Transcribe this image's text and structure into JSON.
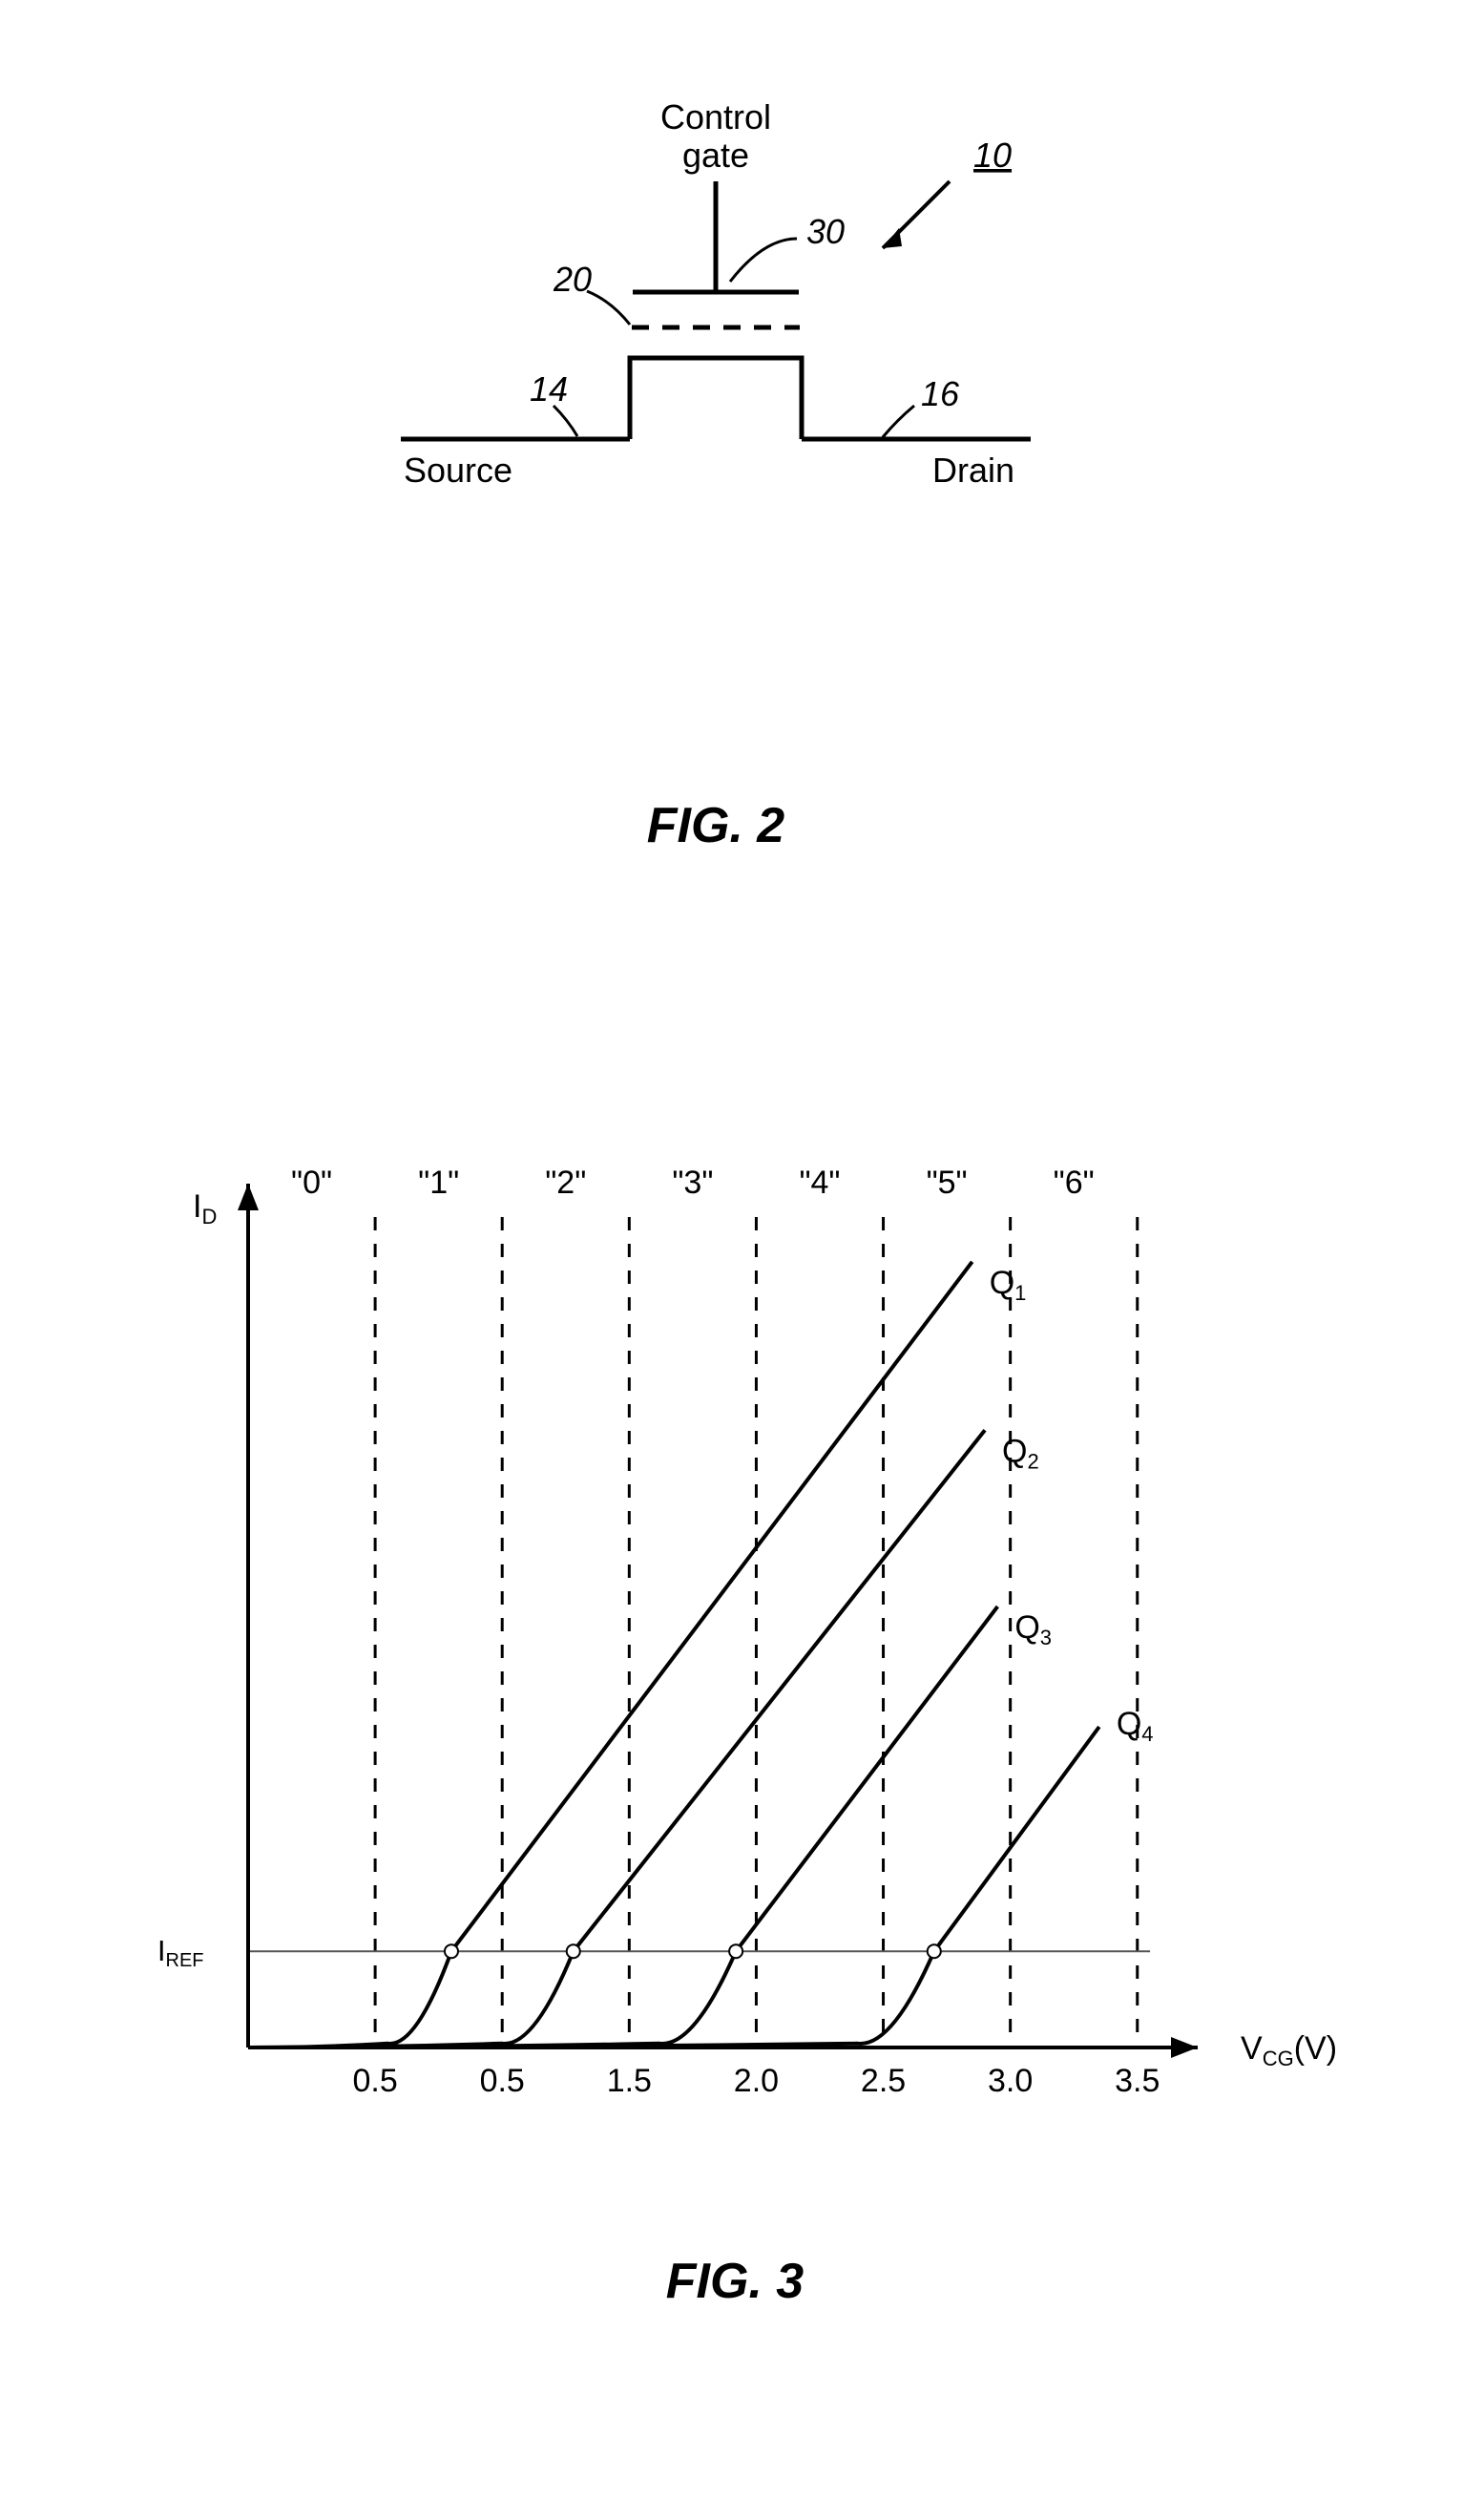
{
  "fig2": {
    "caption": "FIG. 2",
    "caption_fontsize": 52,
    "label_fontsize": 36,
    "ref_fontsize": 36,
    "stroke_width": 5,
    "dash_stroke_width": 5,
    "ctrl_gate": "Control gate",
    "source": "Source",
    "drain": "Drain",
    "ref_main": "10",
    "ref_cg": "30",
    "ref_fg": "20",
    "ref_src": "14",
    "ref_drn": "16"
  },
  "fig3": {
    "caption": "FIG. 3",
    "caption_fontsize": 52,
    "axis_stroke": 4,
    "curve_stroke": 4,
    "dash_stroke": 3,
    "iref_stroke": 2,
    "marker_r": 7,
    "bg": "#ffffff",
    "axis_color": "#000000",
    "curve_color": "#000000",
    "dash_color": "#000000",
    "iref_color": "#555555",
    "y_label_sub": "D",
    "y_label_base": "I",
    "x_label_v": "V",
    "x_label_cg": "CG",
    "x_label_paren": "(V)",
    "iref_label_base": "I",
    "iref_label_sub": "REF",
    "label_fontsize": 34,
    "tick_fontsize": 34,
    "state_fontsize": 34,
    "q_fontsize": 34,
    "plot": {
      "x_min": 0,
      "x_max": 3.7,
      "y_min": 0,
      "y_max": 1.0,
      "iref": 0.12,
      "state_labels": [
        "\"0\"",
        "\"1\"",
        "\"2\"",
        "\"3\"",
        "\"4\"",
        "\"5\"",
        "\"6\""
      ],
      "state_x": [
        0.25,
        0.75,
        1.25,
        1.75,
        2.25,
        2.75,
        3.25
      ],
      "dashed_x": [
        0,
        0.5,
        1.0,
        1.5,
        2.0,
        2.5,
        3.0,
        3.5
      ],
      "tick_x": [
        0.5,
        0.5,
        1.5,
        2.0,
        2.5,
        3.0,
        3.5
      ],
      "tick_labels": [
        "0.5",
        "0.5",
        "1.5",
        "2.0",
        "2.5",
        "3.0",
        "3.5"
      ],
      "curves": [
        {
          "name": "Q1",
          "x0": 0.55,
          "xmark": 0.8,
          "xend": 2.85,
          "yend": 0.98,
          "label_y": 0.95
        },
        {
          "name": "Q2",
          "x0": 1.0,
          "xmark": 1.28,
          "xend": 2.9,
          "yend": 0.77,
          "label_y": 0.74
        },
        {
          "name": "Q3",
          "x0": 1.62,
          "xmark": 1.92,
          "xend": 2.95,
          "yend": 0.55,
          "label_y": 0.52
        },
        {
          "name": "Q4",
          "x0": 2.4,
          "xmark": 2.7,
          "xend": 3.35,
          "yend": 0.4,
          "label_y": 0.4
        }
      ]
    }
  }
}
